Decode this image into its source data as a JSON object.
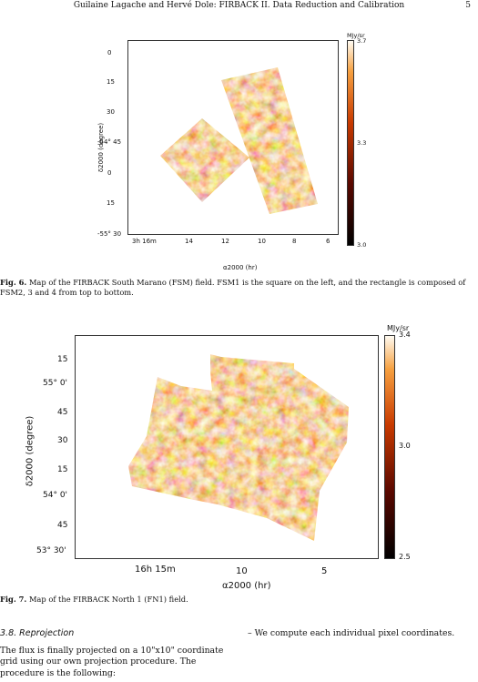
{
  "header": {
    "title": "Guilaine Lagache and Hervé Dole: FIRBACK II. Data Reduction and Calibration",
    "page": "5"
  },
  "fig6": {
    "colorbar_unit": "MJy/sr",
    "colorbar_ticks": [
      "3.7",
      "3.3",
      "3.0"
    ],
    "y_ticks": [
      "0",
      "15",
      "30",
      "-54° 45",
      "0",
      "15",
      "-55° 30"
    ],
    "x_ticks": [
      "3h 16m",
      "14",
      "12",
      "10",
      "8",
      "6"
    ],
    "ylabel": "δ2000 (degree)",
    "xlabel": "α2000 (hr)",
    "caption_label": "Fig. 6.",
    "caption_text": "Map of the FIRBACK South Marano (FSM) field. FSM1 is the square on the left, and the rectangle is composed of FSM2, 3 and 4 from top to bottom."
  },
  "fig7": {
    "colorbar_unit": "MJy/sr",
    "colorbar_ticks": [
      "3.4",
      "3.0",
      "2.5"
    ],
    "y_ticks": [
      "15",
      "55° 0'",
      "45",
      "30",
      "15",
      "54° 0'",
      "45",
      "53° 30'"
    ],
    "x_ticks": [
      "16h 15m",
      "10",
      "5"
    ],
    "ylabel": "δ2000 (degree)",
    "xlabel": "α2000 (hr)",
    "caption_label": "Fig. 7.",
    "caption_text": "Map of the FIRBACK North 1 (FN1) field."
  },
  "body": {
    "section_title": "3.8. Reprojection",
    "paragraph": "The flux is finally projected on a 10\"x10\" coordinate grid using our own projection procedure. The procedure is the following:",
    "bullet": "– We compute each individual pixel coordinates."
  },
  "colors": {
    "map_dark": "#2a0500",
    "map_mid": "#c03a00",
    "map_light": "#fff3dc"
  }
}
